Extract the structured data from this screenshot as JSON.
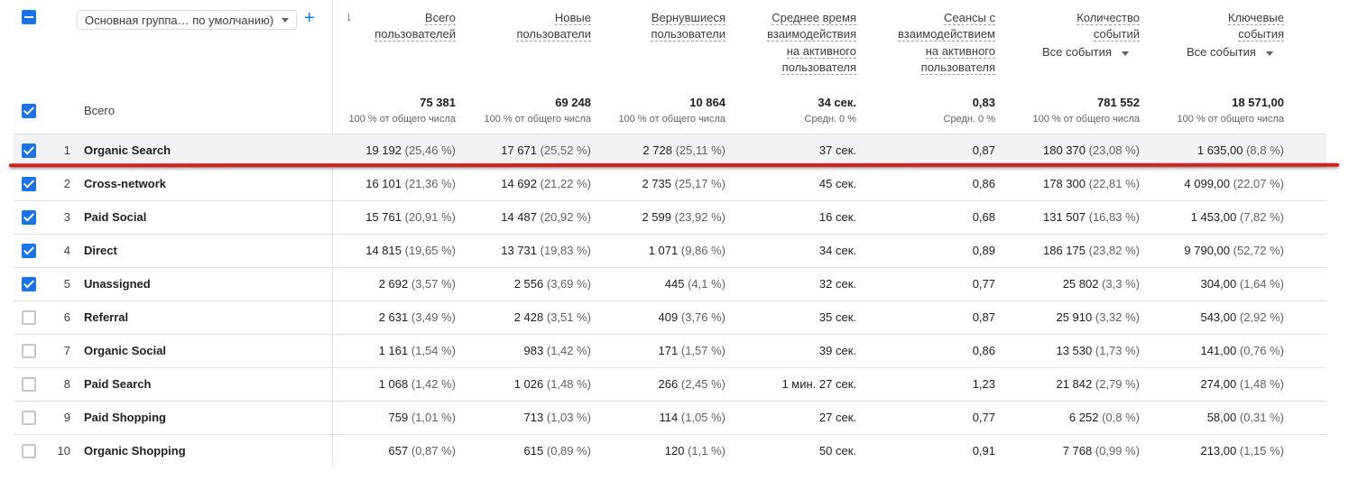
{
  "dimension_select": {
    "label": "Основная группа… по умолчанию)"
  },
  "columns": [
    {
      "id": "total_users",
      "lines": [
        "Всего",
        "пользователей"
      ]
    },
    {
      "id": "new_users",
      "lines": [
        "Новые",
        "пользователи"
      ]
    },
    {
      "id": "returning_users",
      "lines": [
        "Вернувшиеся",
        "пользователи"
      ]
    },
    {
      "id": "avg_engagement",
      "lines": [
        "Среднее время",
        "взаимодействия",
        "на активного",
        "пользователя"
      ]
    },
    {
      "id": "engaged_sessions",
      "lines": [
        "Сеансы с",
        "взаимодействием",
        "на активного",
        "пользователя"
      ]
    },
    {
      "id": "event_count",
      "lines": [
        "Количество",
        "событий"
      ],
      "selector": "Все события"
    },
    {
      "id": "key_events",
      "lines": [
        "Ключевые",
        "события"
      ],
      "selector": "Все события"
    }
  ],
  "totals": {
    "label": "Всего",
    "values": [
      "75 381",
      "69 248",
      "10 864",
      "34 сек.",
      "0,83",
      "781 552",
      "18 571,00"
    ],
    "subs": [
      "100 % от общего числа",
      "100 % от общего числа",
      "100 % от общего числа",
      "Средн. 0 %",
      "Средн. 0 %",
      "100 % от общего числа",
      "100 % от общего числа"
    ]
  },
  "rows": [
    {
      "n": "1",
      "name": "Organic Search",
      "checked": true,
      "selected": true,
      "cells": [
        [
          "19 192",
          "(25,46 %)"
        ],
        [
          "17 671",
          "(25,52 %)"
        ],
        [
          "2 728",
          "(25,11 %)"
        ],
        [
          "37 сек.",
          ""
        ],
        [
          "0,87",
          ""
        ],
        [
          "180 370",
          "(23,08 %)"
        ],
        [
          "1 635,00",
          "(8,8 %)"
        ]
      ]
    },
    {
      "n": "2",
      "name": "Cross-network",
      "checked": true,
      "cells": [
        [
          "16 101",
          "(21,36 %)"
        ],
        [
          "14 692",
          "(21,22 %)"
        ],
        [
          "2 735",
          "(25,17 %)"
        ],
        [
          "45 сек.",
          ""
        ],
        [
          "0,86",
          ""
        ],
        [
          "178 300",
          "(22,81 %)"
        ],
        [
          "4 099,00",
          "(22,07 %)"
        ]
      ]
    },
    {
      "n": "3",
      "name": "Paid Social",
      "checked": true,
      "cells": [
        [
          "15 761",
          "(20,91 %)"
        ],
        [
          "14 487",
          "(20,92 %)"
        ],
        [
          "2 599",
          "(23,92 %)"
        ],
        [
          "16 сек.",
          ""
        ],
        [
          "0,68",
          ""
        ],
        [
          "131 507",
          "(16,83 %)"
        ],
        [
          "1 453,00",
          "(7,82 %)"
        ]
      ]
    },
    {
      "n": "4",
      "name": "Direct",
      "checked": true,
      "cells": [
        [
          "14 815",
          "(19,65 %)"
        ],
        [
          "13 731",
          "(19,83 %)"
        ],
        [
          "1 071",
          "(9,86 %)"
        ],
        [
          "34 сек.",
          ""
        ],
        [
          "0,89",
          ""
        ],
        [
          "186 175",
          "(23,82 %)"
        ],
        [
          "9 790,00",
          "(52,72 %)"
        ]
      ]
    },
    {
      "n": "5",
      "name": "Unassigned",
      "checked": true,
      "cells": [
        [
          "2 692",
          "(3,57 %)"
        ],
        [
          "2 556",
          "(3,69 %)"
        ],
        [
          "445",
          "(4,1 %)"
        ],
        [
          "32 сек.",
          ""
        ],
        [
          "0,77",
          ""
        ],
        [
          "25 802",
          "(3,3 %)"
        ],
        [
          "304,00",
          "(1,64 %)"
        ]
      ]
    },
    {
      "n": "6",
      "name": "Referral",
      "checked": false,
      "cells": [
        [
          "2 631",
          "(3,49 %)"
        ],
        [
          "2 428",
          "(3,51 %)"
        ],
        [
          "409",
          "(3,76 %)"
        ],
        [
          "35 сек.",
          ""
        ],
        [
          "0,87",
          ""
        ],
        [
          "25 910",
          "(3,32 %)"
        ],
        [
          "543,00",
          "(2,92 %)"
        ]
      ]
    },
    {
      "n": "7",
      "name": "Organic Social",
      "checked": false,
      "cells": [
        [
          "1 161",
          "(1,54 %)"
        ],
        [
          "983",
          "(1,42 %)"
        ],
        [
          "171",
          "(1,57 %)"
        ],
        [
          "39 сек.",
          ""
        ],
        [
          "0,86",
          ""
        ],
        [
          "13 530",
          "(1,73 %)"
        ],
        [
          "141,00",
          "(0,76 %)"
        ]
      ]
    },
    {
      "n": "8",
      "name": "Paid Search",
      "checked": false,
      "cells": [
        [
          "1 068",
          "(1,42 %)"
        ],
        [
          "1 026",
          "(1,48 %)"
        ],
        [
          "266",
          "(2,45 %)"
        ],
        [
          "1 мин. 27 сек.",
          ""
        ],
        [
          "1,23",
          ""
        ],
        [
          "21 842",
          "(2,79 %)"
        ],
        [
          "274,00",
          "(1,48 %)"
        ]
      ]
    },
    {
      "n": "9",
      "name": "Paid Shopping",
      "checked": false,
      "cells": [
        [
          "759",
          "(1,01 %)"
        ],
        [
          "713",
          "(1,03 %)"
        ],
        [
          "114",
          "(1,05 %)"
        ],
        [
          "27 сек.",
          ""
        ],
        [
          "0,77",
          ""
        ],
        [
          "6 252",
          "(0,8 %)"
        ],
        [
          "58,00",
          "(0,31 %)"
        ]
      ]
    },
    {
      "n": "10",
      "name": "Organic Shopping",
      "checked": false,
      "cells": [
        [
          "657",
          "(0,87 %)"
        ],
        [
          "615",
          "(0,89 %)"
        ],
        [
          "120",
          "(1,1 %)"
        ],
        [
          "50 сек.",
          ""
        ],
        [
          "0,91",
          ""
        ],
        [
          "7 768",
          "(0,99 %)"
        ],
        [
          "213,00",
          "(1,15 %)"
        ]
      ]
    }
  ],
  "colors": {
    "accent": "#1a73e8",
    "highlight_line": "#d2221e",
    "selected_row": "#f1f3f4"
  }
}
